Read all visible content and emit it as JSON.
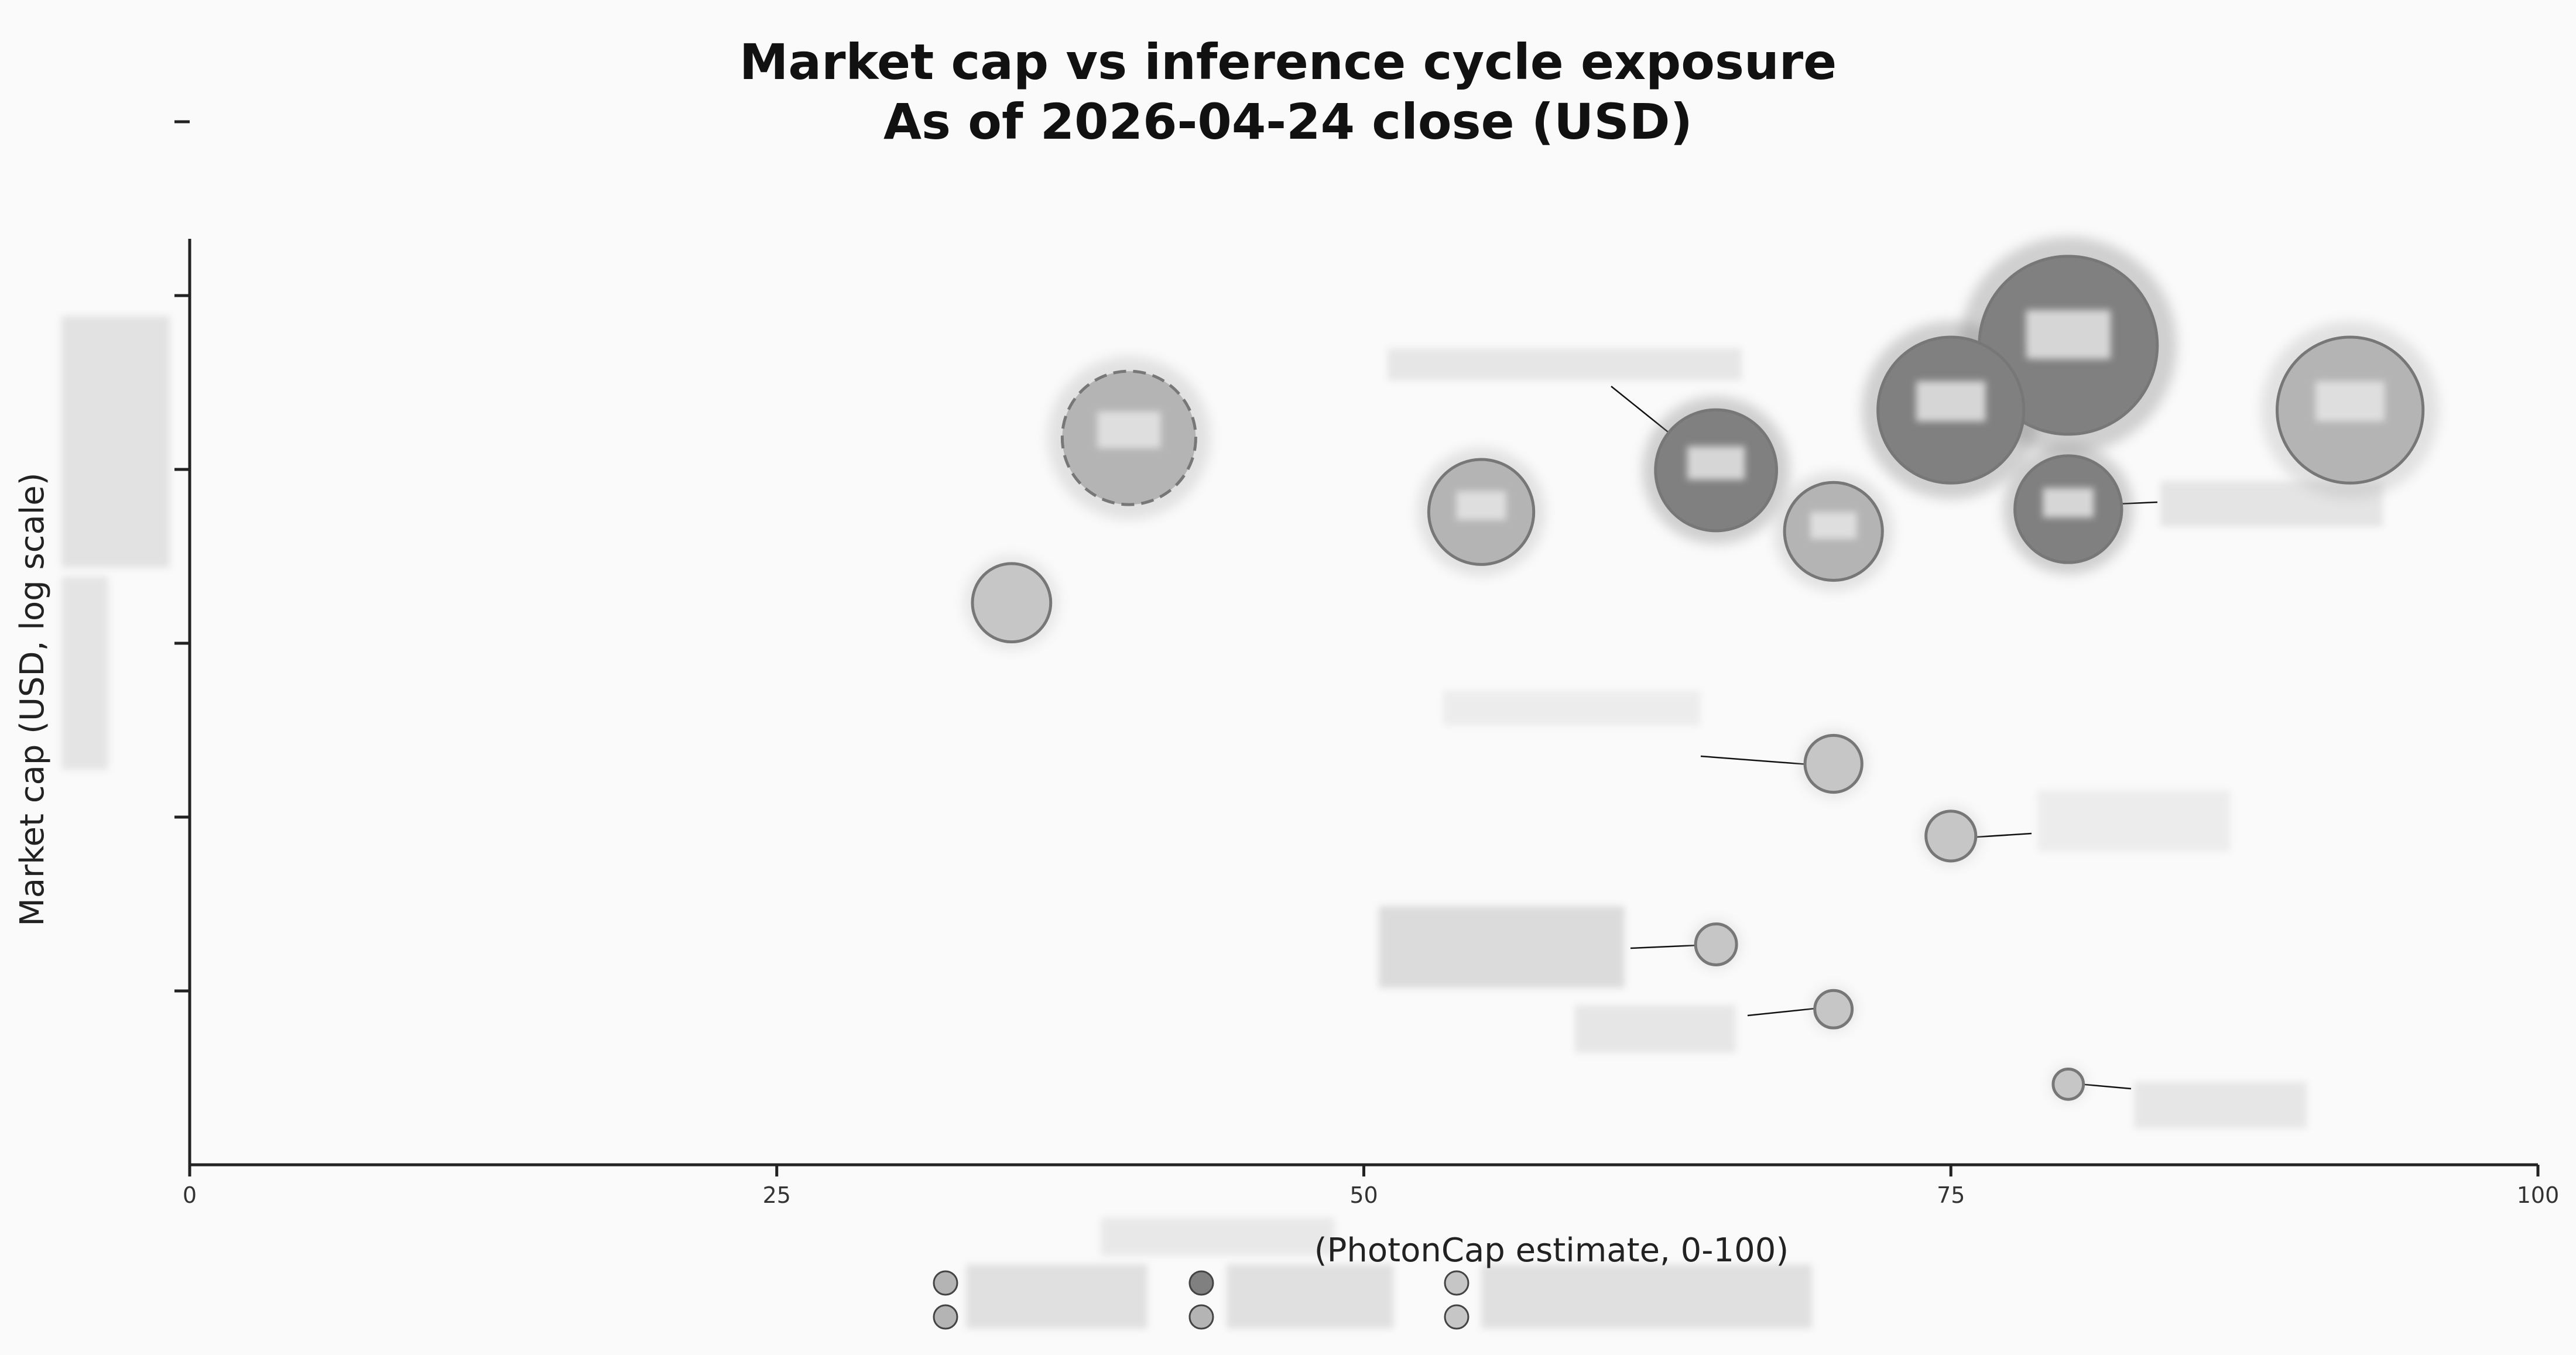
{
  "chart_data": {
    "type": "scatter",
    "title": "Market cap vs inference cycle exposure",
    "subtitle": "As of 2026-04-24 close (USD)",
    "xlabel": "(PhotonCap estimate, 0-100)",
    "ylabel": "Market cap (USD, log scale)",
    "xlim": [
      0,
      100
    ],
    "x_ticks": [
      0,
      25,
      50,
      75,
      100
    ],
    "y_scale": "log",
    "y_tick_count": 6,
    "grid": false,
    "legend_position": "bottom",
    "legend_entries": 6,
    "points": [
      {
        "x": 80,
        "y_axis_fraction": 0.885,
        "size_level": 1.0,
        "shade": "dark",
        "style": "solid"
      },
      {
        "x": 75,
        "y_axis_fraction": 0.815,
        "size_level": 0.82,
        "shade": "dark",
        "style": "solid"
      },
      {
        "x": 92,
        "y_axis_fraction": 0.815,
        "size_level": 0.82,
        "shade": "medium",
        "style": "solid"
      },
      {
        "x": 40,
        "y_axis_fraction": 0.785,
        "size_level": 0.75,
        "shade": "medium",
        "style": "dashed"
      },
      {
        "x": 65,
        "y_axis_fraction": 0.75,
        "size_level": 0.68,
        "shade": "dark",
        "style": "solid"
      },
      {
        "x": 55,
        "y_axis_fraction": 0.705,
        "size_level": 0.59,
        "shade": "medium",
        "style": "solid"
      },
      {
        "x": 80,
        "y_axis_fraction": 0.708,
        "size_level": 0.6,
        "shade": "dark",
        "style": "solid"
      },
      {
        "x": 70,
        "y_axis_fraction": 0.684,
        "size_level": 0.55,
        "shade": "medium",
        "style": "solid"
      },
      {
        "x": 35,
        "y_axis_fraction": 0.607,
        "size_level": 0.44,
        "shade": "light",
        "style": "solid"
      },
      {
        "x": 70,
        "y_axis_fraction": 0.433,
        "size_level": 0.32,
        "shade": "light",
        "style": "solid"
      },
      {
        "x": 75,
        "y_axis_fraction": 0.355,
        "size_level": 0.28,
        "shade": "light",
        "style": "solid"
      },
      {
        "x": 65,
        "y_axis_fraction": 0.238,
        "size_level": 0.23,
        "shade": "light",
        "style": "solid"
      },
      {
        "x": 70,
        "y_axis_fraction": 0.168,
        "size_level": 0.21,
        "shade": "light",
        "style": "solid"
      },
      {
        "x": 80,
        "y_axis_fraction": 0.087,
        "size_level": 0.17,
        "shade": "light",
        "style": "solid"
      }
    ],
    "colors": {
      "dark": "#808080",
      "medium": "#b4b4b4",
      "light": "#c6c6c6",
      "stroke": "#777777",
      "axis": "#222222",
      "background": "#fafafa"
    }
  }
}
